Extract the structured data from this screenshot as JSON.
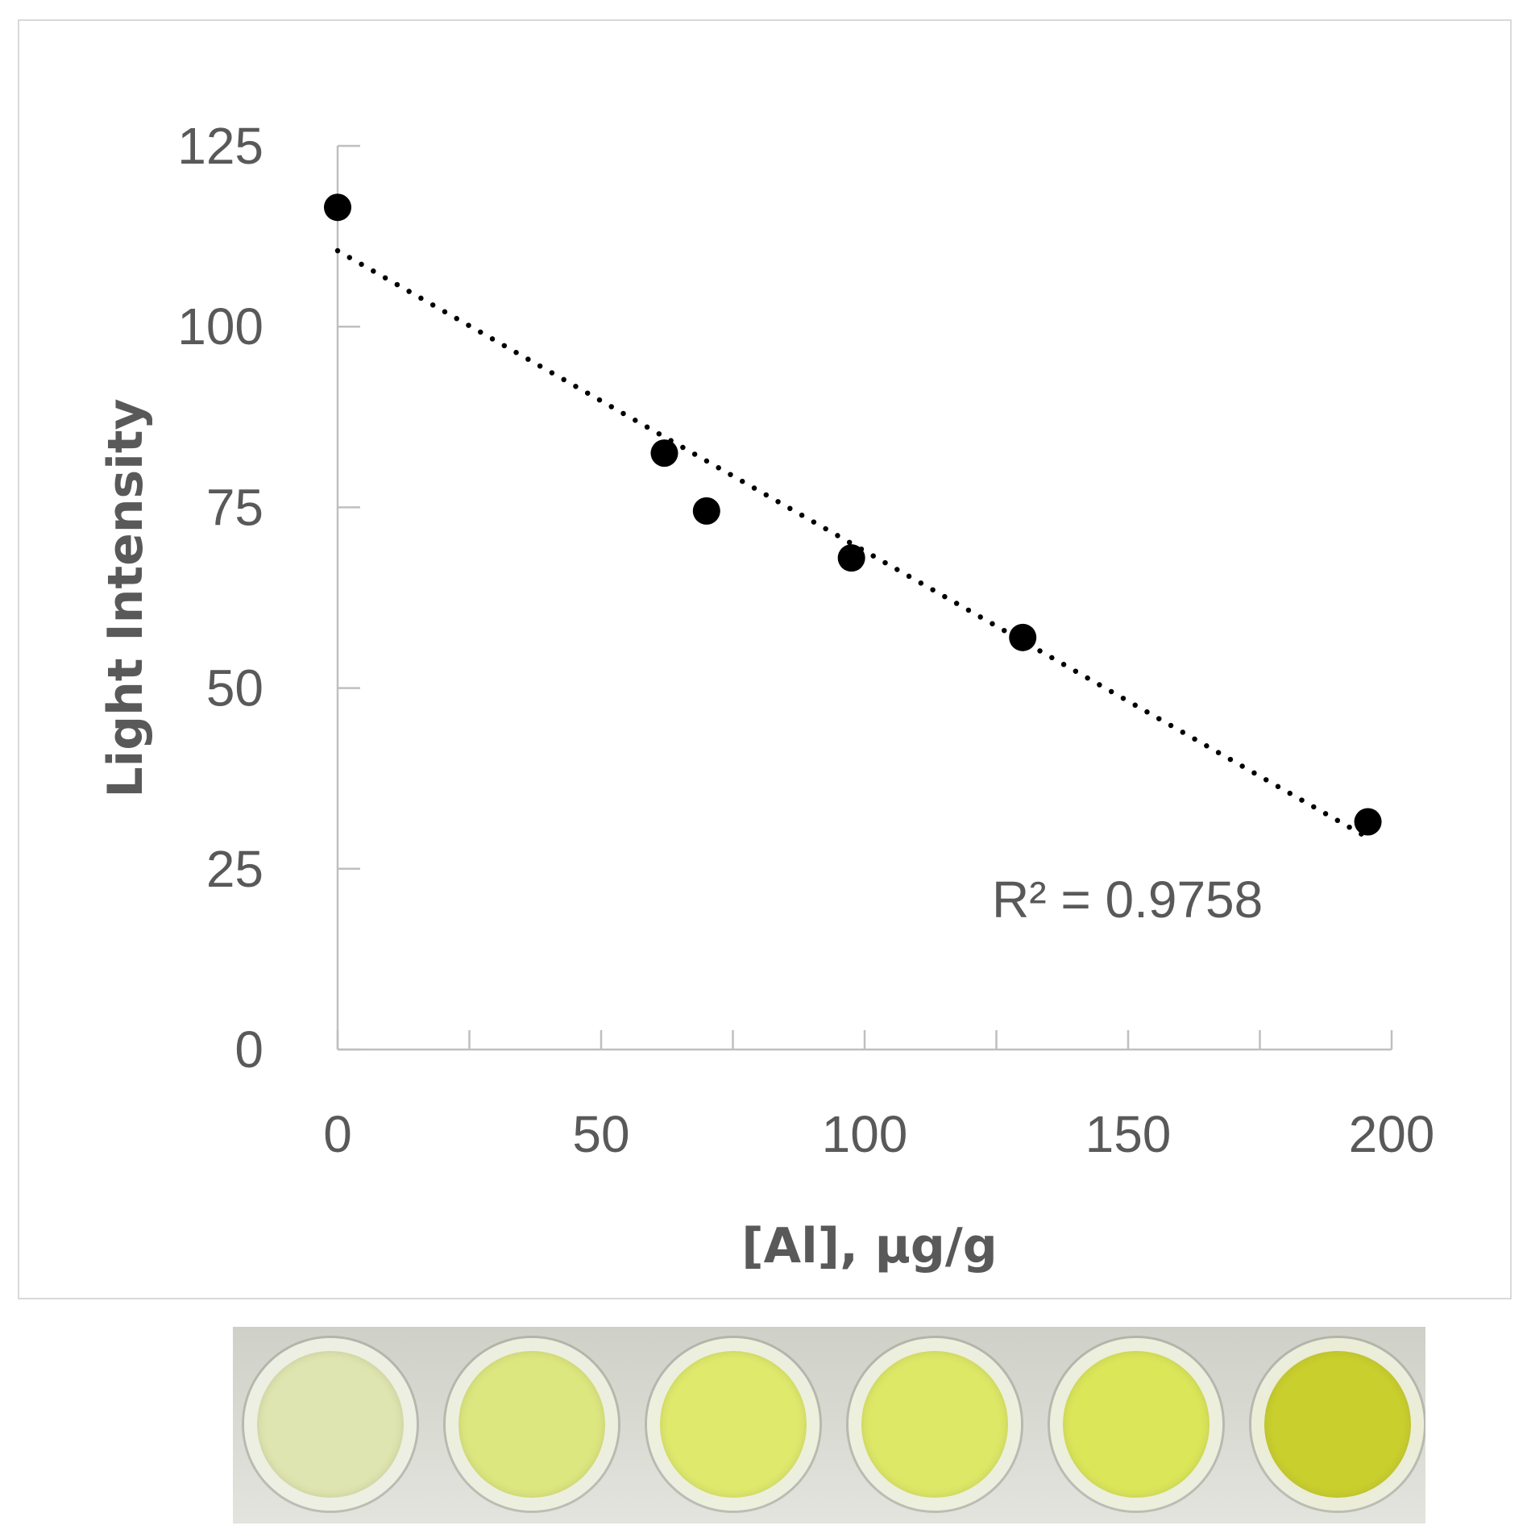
{
  "chart_data": {
    "type": "scatter",
    "xlabel": "[Al], μg/g",
    "ylabel": "Light Intensity",
    "xlim": [
      0,
      200
    ],
    "ylim": [
      0,
      125
    ],
    "x_ticks": [
      "0",
      "50",
      "100",
      "150",
      "200"
    ],
    "y_ticks": [
      "0",
      "25",
      "50",
      "75",
      "100",
      "125"
    ],
    "series": [
      {
        "points": [
          [
            0,
            116.5
          ],
          [
            62,
            82.5
          ],
          [
            70,
            74.5
          ],
          [
            97.5,
            68
          ],
          [
            130,
            57
          ],
          [
            195.5,
            31.5
          ]
        ]
      }
    ],
    "trendline": {
      "style": "dotted",
      "from": [
        0,
        110.5
      ],
      "to": [
        195,
        29.5
      ]
    },
    "annotation": "R² = 0.9758",
    "grid": false,
    "colors": {
      "marker": "#000000",
      "axis": "#bfbfbf",
      "text": "#595959"
    }
  },
  "wells": {
    "label": "sample-wells-photo",
    "colors": [
      "#dfe5b0",
      "#dde77f",
      "#dfe96c",
      "#dde866",
      "#dbe659",
      "#c9cf2c"
    ]
  }
}
